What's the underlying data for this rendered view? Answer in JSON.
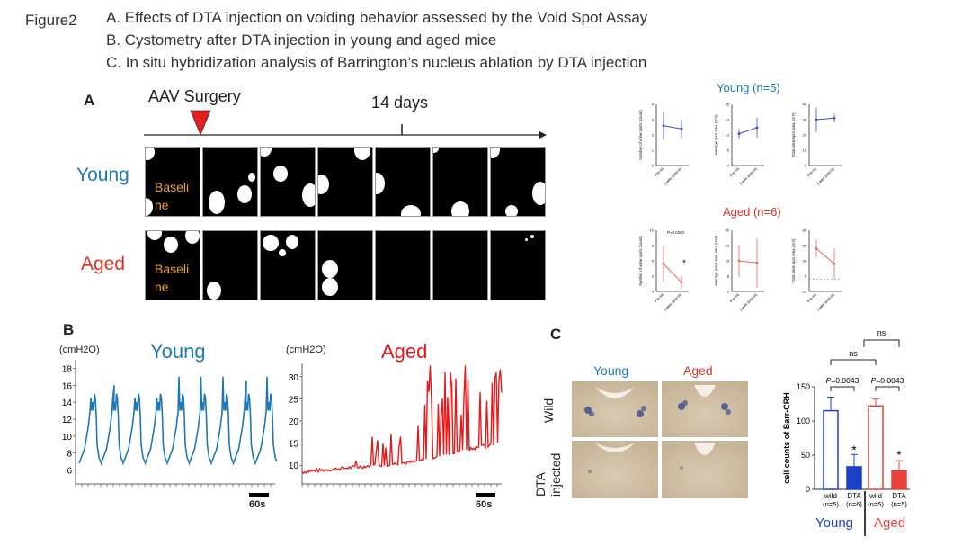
{
  "header": {
    "figure_label": "Figure2",
    "lines": [
      "A.  Effects of DTA injection on voiding behavior assessed by the Void Spot Assay",
      "B.  Cystometry after DTA injection in young and aged mice",
      "C.  In situ hybridization analysis of Barrington’s nucleus ablation by DTA injection"
    ]
  },
  "panelA": {
    "letter": "A",
    "surgery_label": "AAV Surgery",
    "days_label": "14 days",
    "young_label": "Young",
    "aged_label": "Aged",
    "baseline_label_1": "Baseli",
    "baseline_label_2": "ne",
    "young_title": "Young (n=5)",
    "aged_title": "Aged (n=6)",
    "colors": {
      "young": "#1a7ab8",
      "aged": "#e0302a",
      "baseline_text": "#f0a030",
      "young_plot": "#3a4ec8",
      "aged_plot": "#e06a5a"
    },
    "x_ticks": [
      "Pre-inj",
      "2 wks post-inj"
    ],
    "p_value_label": "P=0.0260",
    "star": "*"
  },
  "chart_data": [
    {
      "type": "line",
      "panel": "A young 1",
      "ylabel": "Number of urine spots (count)",
      "ylim": [
        0,
        4
      ],
      "x": [
        "Pre-inj",
        "2 wks post-inj"
      ],
      "values": [
        2.6,
        2.4
      ],
      "err": [
        0.9,
        0.6
      ]
    },
    {
      "type": "line",
      "panel": "A young 2",
      "ylabel": "Average spot area (cm²)",
      "ylim": [
        0,
        25
      ],
      "x": [
        "Pre-inj",
        "2 wks post-inj"
      ],
      "values": [
        13,
        15.5
      ],
      "err": [
        2,
        4
      ]
    },
    {
      "type": "line",
      "panel": "A young 3",
      "ylabel": "Total urine spot area (cm²)",
      "ylim": [
        0,
        40
      ],
      "x": [
        "Pre-inj",
        "2 wks post-inj"
      ],
      "values": [
        30,
        31
      ],
      "err": [
        8,
        3
      ]
    },
    {
      "type": "line",
      "panel": "A aged 1",
      "ylabel": "Number of urine spots (count)",
      "ylim": [
        0,
        10
      ],
      "x": [
        "Pre-inj",
        "2 wks post-inj"
      ],
      "values": [
        4.5,
        1.5
      ],
      "err": [
        3,
        1
      ]
    },
    {
      "type": "line",
      "panel": "A aged 2",
      "ylabel": "Average urine spot area (cm²)",
      "ylim": [
        0,
        30
      ],
      "x": [
        "Pre-inj",
        "2 wks post-inj"
      ],
      "values": [
        15,
        14
      ],
      "err": [
        8,
        12
      ]
    },
    {
      "type": "line",
      "panel": "A aged 3",
      "ylabel": "Total urine spot area (cm²)",
      "ylim": [
        -20,
        80
      ],
      "x": [
        "Pre-inj",
        "2 wks post-inj"
      ],
      "values": [
        50,
        25
      ],
      "err": [
        15,
        25
      ]
    },
    {
      "type": "line",
      "panel": "B young",
      "title": "Young",
      "ylabel": "(cmH2O)",
      "y_ticks": [
        6,
        8,
        10,
        12,
        14,
        16,
        18
      ],
      "ylim": [
        5,
        19
      ],
      "scale_bar": "60s",
      "peaks": 9
    },
    {
      "type": "line",
      "panel": "B aged",
      "title": "Aged",
      "ylabel": "(cmH2O)",
      "y_ticks": [
        10,
        15,
        20,
        25,
        30
      ],
      "ylim": [
        7,
        33
      ],
      "scale_bar": "60s"
    },
    {
      "type": "bar",
      "panel": "C",
      "ylabel": "cell counts of Barr-CRH",
      "ylim": [
        0,
        150
      ],
      "y_ticks": [
        0,
        50,
        100,
        150
      ],
      "categories": [
        "wild (n=5)",
        "DTA (n=6)",
        "wild (n=5)",
        "DTA (n=5)"
      ],
      "values": [
        115,
        33,
        122,
        27
      ],
      "err": [
        20,
        18,
        10,
        15
      ],
      "groups": [
        "Young",
        "Aged"
      ],
      "p_values": [
        "P=0.0043",
        "P=0.0043"
      ],
      "ns": "ns",
      "star": "*"
    }
  ],
  "panelB": {
    "letter": "B",
    "young": "Young",
    "aged": "Aged",
    "unit": "(cmH2O)",
    "scale": "60s",
    "colors": {
      "young": "#1f77b4",
      "aged": "#e31a1c"
    }
  },
  "panelC": {
    "letter": "C",
    "young": "Young",
    "aged": "Aged",
    "row_wild": "Wild",
    "row_dta_1": "DTA",
    "row_dta_2": "injected",
    "young_group": "Young",
    "aged_group": "Aged",
    "cat_wild": "wild",
    "cat_dta": "DTA",
    "n5": "(n=5)",
    "n6": "(n=6)",
    "p1": "=0.0043",
    "p2": "=0.0043",
    "p_letter": "P",
    "ns": "ns",
    "star": "*",
    "ylabel": "cell counts of Barr-CRH",
    "colors": {
      "young": "#1a40c8",
      "aged": "#e8403a"
    }
  }
}
